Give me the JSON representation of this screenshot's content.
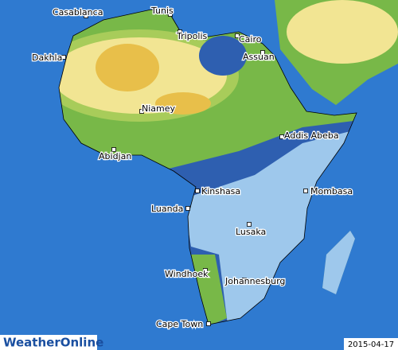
{
  "map": {
    "cities": [
      "Casablanca",
      "Tunis",
      "Tripolis",
      "Cairo",
      "Assuan",
      "Dakhla",
      "Niamey",
      "Addis Abeba",
      "Abidjan",
      "Kinshasa",
      "Mombasa",
      "Luanda",
      "Lusaka",
      "Windhoek",
      "Johannesburg",
      "Cape Town"
    ],
    "logo": "WeatherOnline",
    "date": "2015-04-17"
  }
}
